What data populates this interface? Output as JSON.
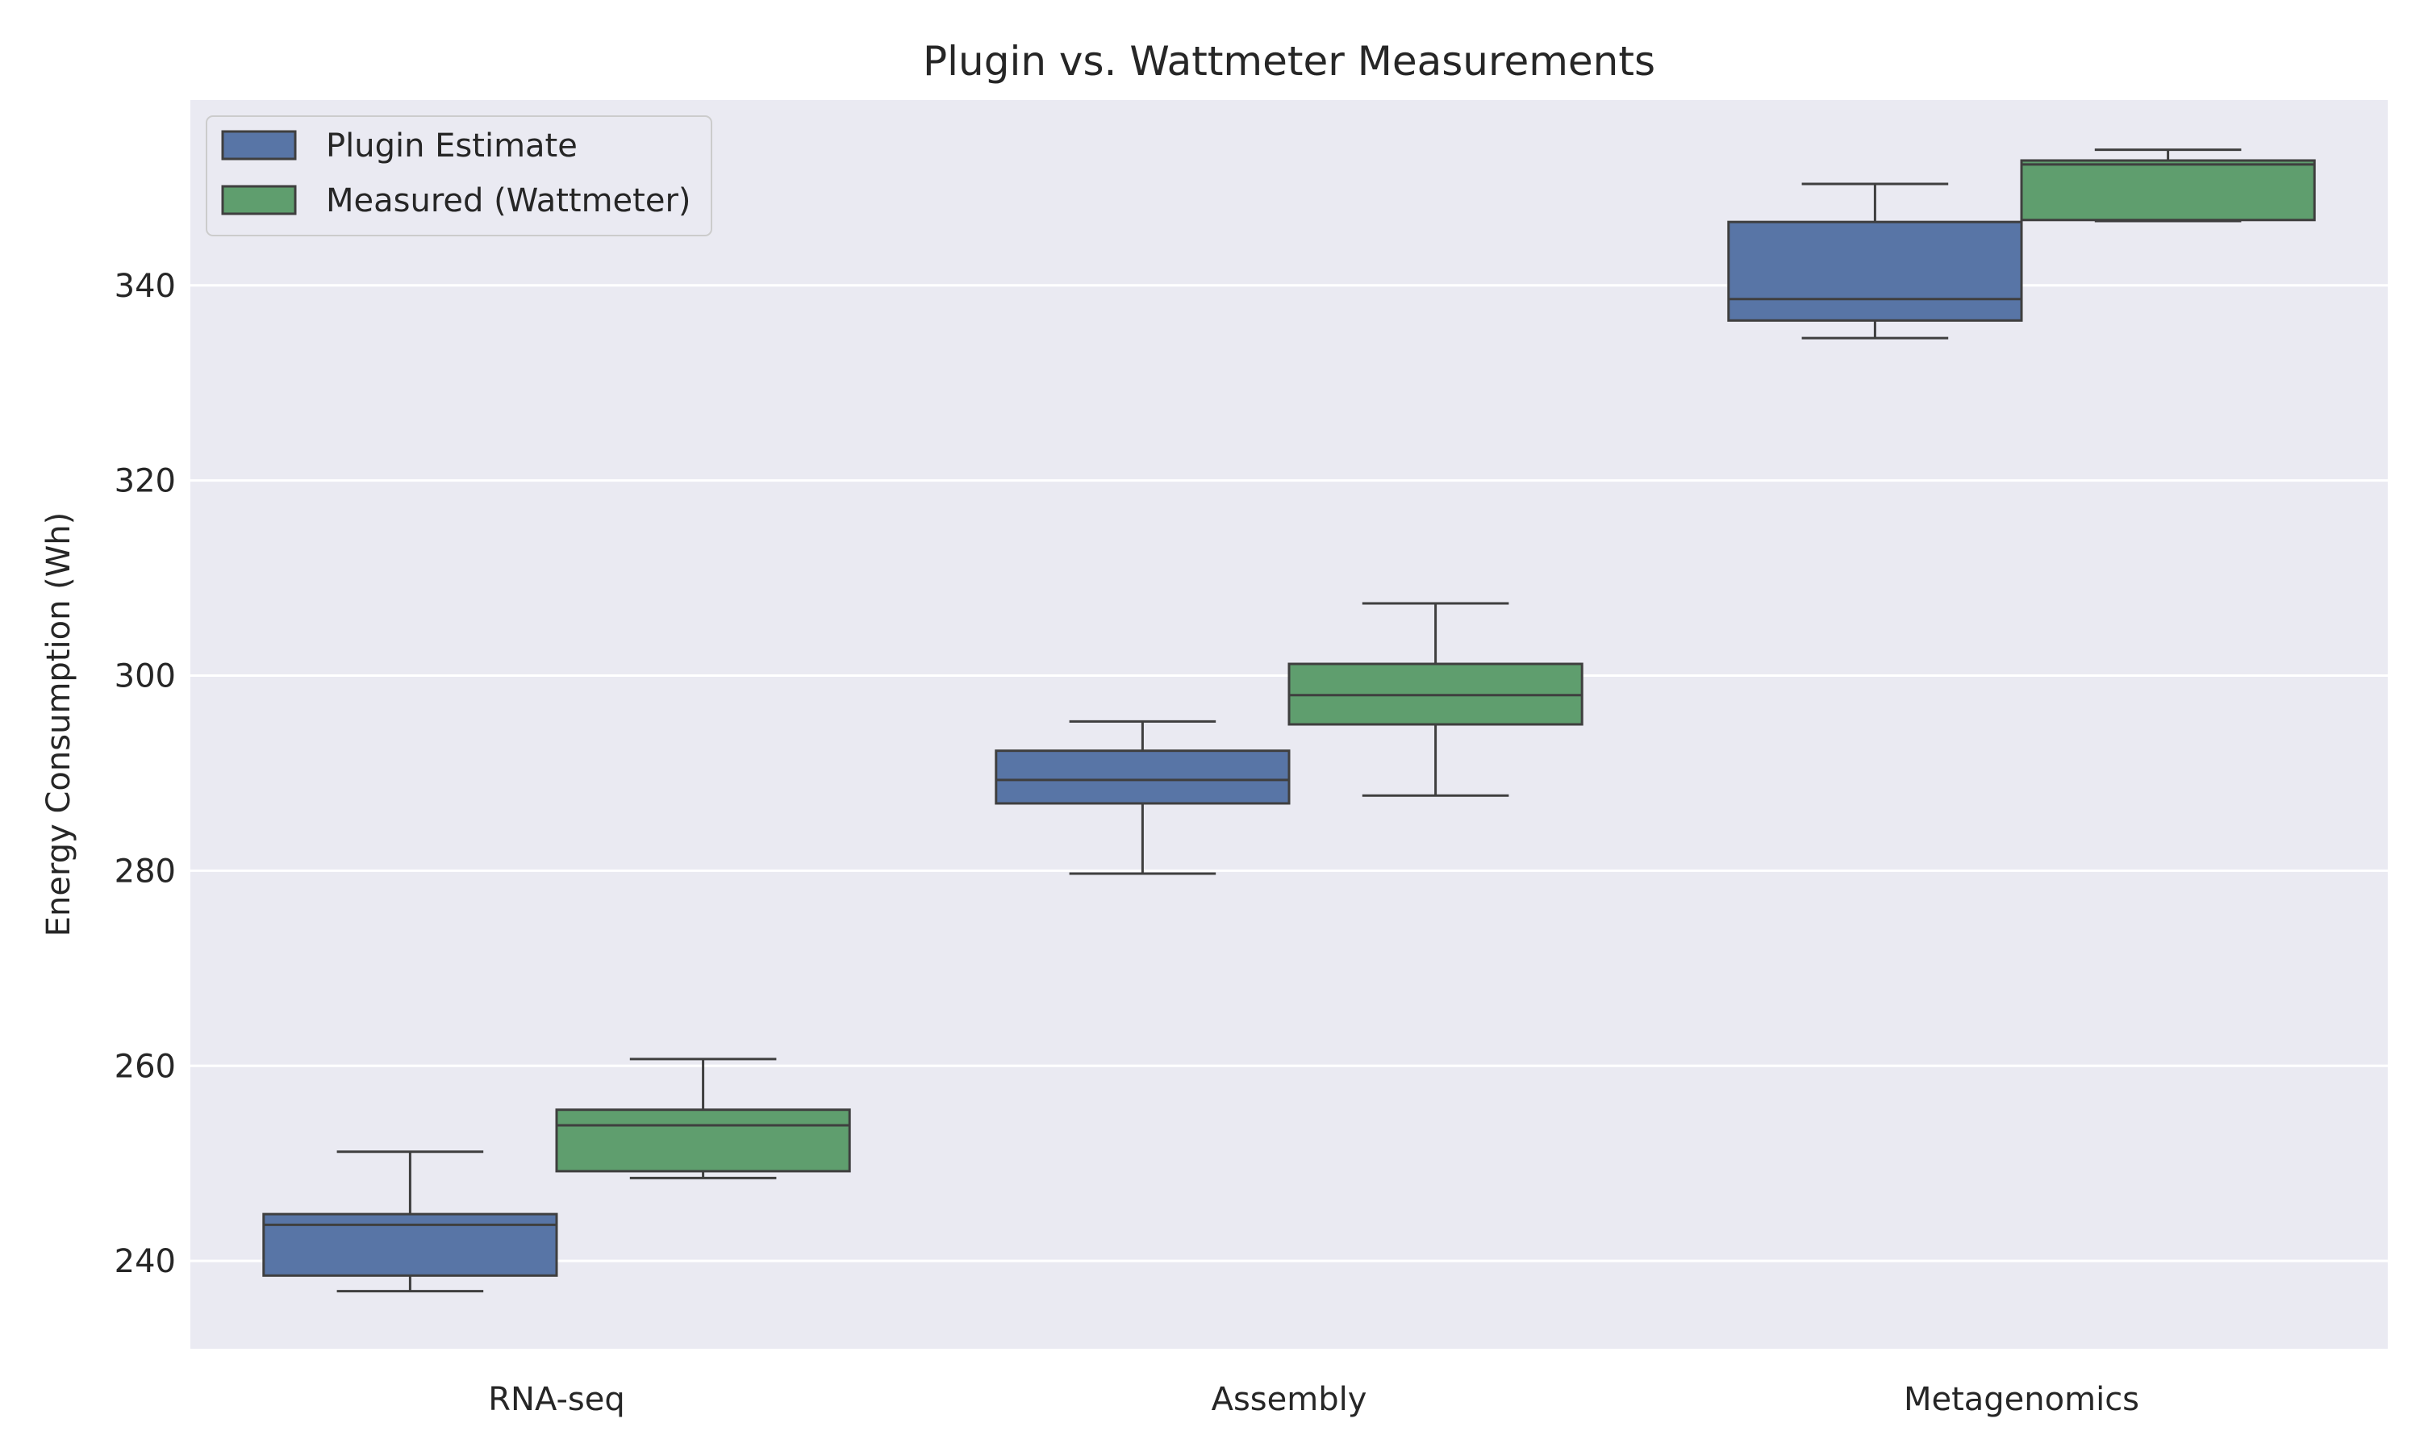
{
  "chart_data": {
    "type": "box",
    "title": "Plugin vs. Wattmeter Measurements",
    "xlabel": "",
    "ylabel": "Energy Consumption (Wh)",
    "ylim": [
      231,
      359
    ],
    "yticks": [
      240,
      260,
      280,
      300,
      320,
      340
    ],
    "grid": true,
    "legend_position": "top-left",
    "categories": [
      "RNA-seq",
      "Assembly",
      "Metagenomics"
    ],
    "series": [
      {
        "name": "Plugin Estimate",
        "color": "#5875a6",
        "boxes": [
          {
            "whislo": 236.9,
            "q1": 238.5,
            "med": 243.7,
            "q3": 244.8,
            "whishi": 251.2
          },
          {
            "whislo": 279.7,
            "q1": 286.9,
            "med": 289.3,
            "q3": 292.3,
            "whishi": 295.3
          },
          {
            "whislo": 334.6,
            "q1": 336.4,
            "med": 338.6,
            "q3": 346.5,
            "whishi": 350.4
          }
        ]
      },
      {
        "name": "Measured (Wattmeter)",
        "color": "#5f9e6e",
        "boxes": [
          {
            "whislo": 248.5,
            "q1": 249.2,
            "med": 253.9,
            "q3": 255.5,
            "whishi": 260.7
          },
          {
            "whislo": 287.7,
            "q1": 295.0,
            "med": 298.0,
            "q3": 301.2,
            "whishi": 307.4
          },
          {
            "whislo": 346.6,
            "q1": 346.7,
            "med": 352.4,
            "q3": 352.8,
            "whishi": 353.9
          }
        ]
      }
    ]
  }
}
